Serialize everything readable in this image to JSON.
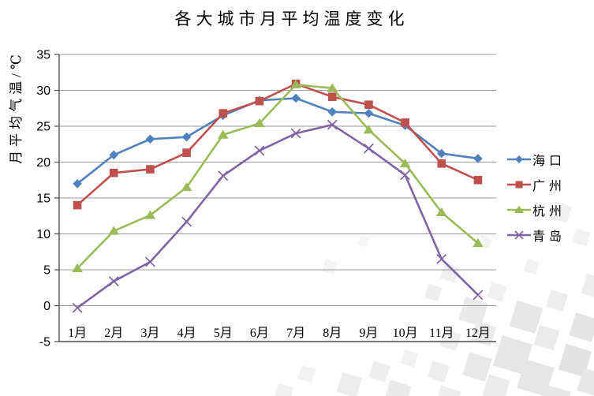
{
  "chart_data": {
    "type": "line",
    "title": "各大城市月平均温度变化",
    "ylabel": "月平均气温/℃",
    "xlabel": "",
    "categories": [
      "1月",
      "2月",
      "3月",
      "4月",
      "5月",
      "6月",
      "7月",
      "8月",
      "9月",
      "10月",
      "11月",
      "12月"
    ],
    "series": [
      {
        "name": "海口",
        "color": "#4F81BD",
        "marker": "diamond",
        "values": [
          17,
          21,
          23.2,
          23.5,
          26.5,
          28.6,
          28.9,
          27,
          26.8,
          25.1,
          21.2,
          20.5
        ]
      },
      {
        "name": "广州",
        "color": "#C0504D",
        "marker": "square",
        "values": [
          14,
          18.5,
          19,
          21.3,
          26.8,
          28.5,
          30.9,
          29.1,
          28,
          25.5,
          19.8,
          17.5
        ]
      },
      {
        "name": "杭州",
        "color": "#9BBB59",
        "marker": "triangle",
        "values": [
          5.2,
          10.4,
          12.6,
          16.5,
          23.8,
          25.4,
          30.8,
          30.3,
          24.5,
          19.8,
          13,
          8.7
        ]
      },
      {
        "name": "青岛",
        "color": "#8064A2",
        "marker": "x",
        "values": [
          -0.3,
          3.4,
          6.1,
          11.7,
          18.1,
          21.6,
          24,
          25.2,
          21.9,
          18.2,
          6.5,
          1.5
        ]
      }
    ],
    "ylim": [
      -5,
      35
    ],
    "yticks": [
      35,
      30,
      25,
      20,
      15,
      10,
      5,
      0,
      -5
    ],
    "grid": true,
    "legend_position": "right",
    "gridline_color": "#9a9a9a",
    "axis_color": "#4d4d4d",
    "text_color": "#000000"
  }
}
